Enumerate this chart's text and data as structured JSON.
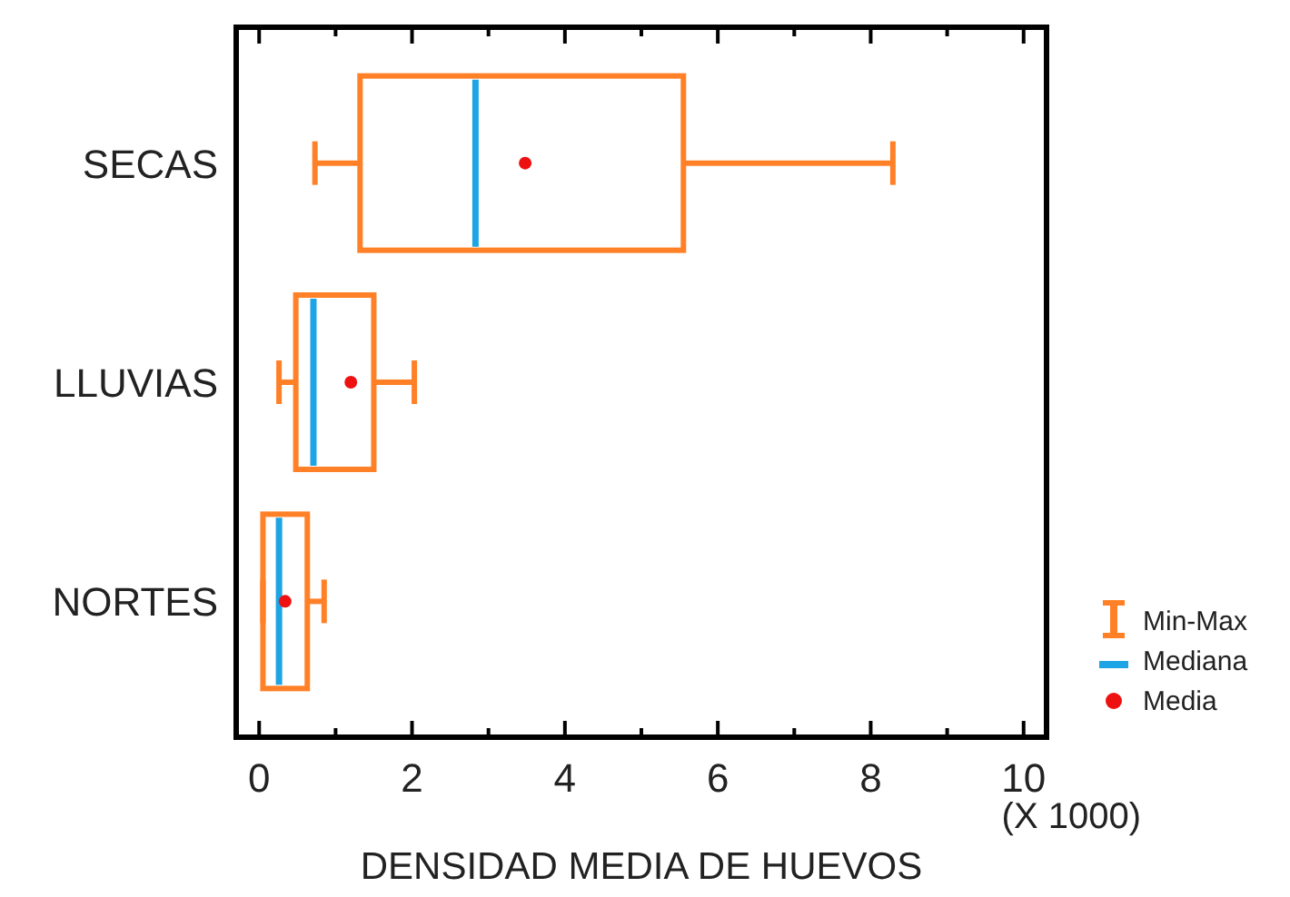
{
  "chart_data": {
    "type": "box",
    "orientation": "horizontal",
    "xlabel": "DENSIDAD MEDIA DE HUEVOS",
    "categories": [
      "SECAS",
      "LLUVIAS",
      "NORTES"
    ],
    "series": [
      {
        "name": "Min-Max",
        "color": "#ff8026",
        "boxes": [
          {
            "low": 0.73,
            "q1": 1.32,
            "median": 2.83,
            "q3": 5.55,
            "high": 8.29,
            "mean": 3.48
          },
          {
            "low": 0.26,
            "q1": 0.48,
            "median": 0.71,
            "q3": 1.5,
            "high": 2.03,
            "mean": 1.2
          },
          {
            "low": 0.05,
            "q1": 0.05,
            "median": 0.26,
            "q3": 0.63,
            "high": 0.85,
            "mean": 0.34
          }
        ]
      }
    ],
    "xlim": [
      -0.3,
      10.3
    ],
    "xticks": [
      0,
      {
        "value": 1,
        "label": null
      },
      2,
      {
        "value": 3,
        "label": null
      },
      4,
      {
        "value": 5,
        "label": null
      },
      6,
      {
        "value": 7,
        "label": null
      },
      8,
      {
        "value": 9,
        "label": null
      },
      10
    ],
    "legend": "bottom right",
    "annotations": [
      "(X 1000)",
      "Mediana",
      "Media"
    ]
  }
}
